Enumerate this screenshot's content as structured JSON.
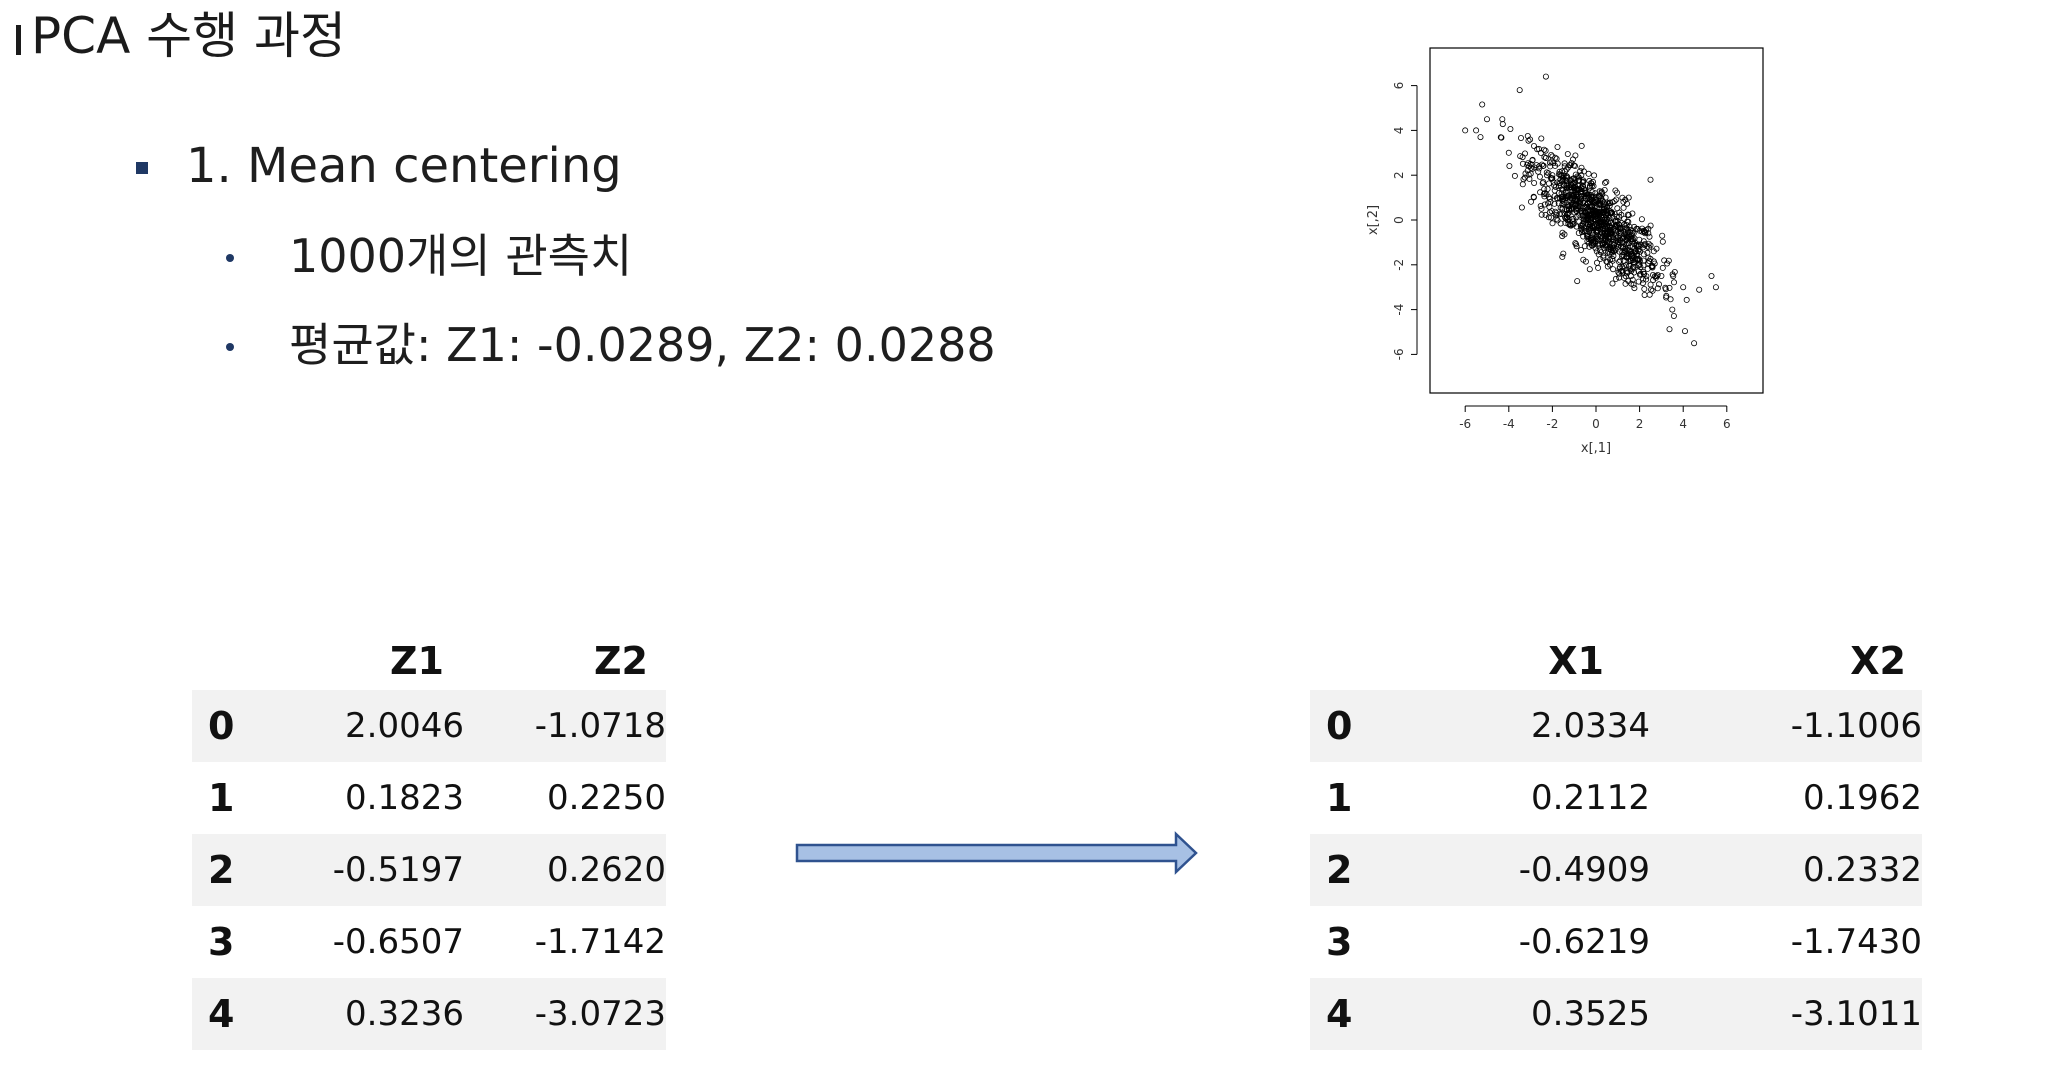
{
  "title": "PCA 수행 과정",
  "bullets": {
    "level1": "1. Mean centering",
    "level2": [
      "1000개의 관측치",
      "평균값: Z1:  -0.0289,  Z2:  0.0288"
    ]
  },
  "plot": {
    "xlabel": "x[,1]",
    "ylabel": "x[,2]",
    "xticks": [
      "-6",
      "-4",
      "-2",
      "0",
      "2",
      "4",
      "6"
    ],
    "yticks": [
      "6",
      "4",
      "2",
      "0",
      "-2",
      "-4",
      "-6"
    ]
  },
  "chart_data": {
    "type": "scatter",
    "xlabel": "x[,1]",
    "ylabel": "x[,2]",
    "xlim": [
      -7,
      8
    ],
    "ylim": [
      -8,
      8
    ],
    "n_points": 1000,
    "grid": false,
    "sample_points": [
      [
        -5.0,
        4.5
      ],
      [
        -5.5,
        4.0
      ],
      [
        -4.3,
        4.5
      ],
      [
        -3.5,
        5.8
      ],
      [
        -2.3,
        6.4
      ],
      [
        -5.3,
        3.7
      ],
      [
        -6.0,
        4.0
      ],
      [
        -4.0,
        3.0
      ],
      [
        -3.0,
        2.5
      ],
      [
        -2.0,
        2.0
      ],
      [
        -1.0,
        1.0
      ],
      [
        0.0,
        0.0
      ],
      [
        1.0,
        -1.0
      ],
      [
        2.0,
        -2.0
      ],
      [
        3.0,
        -2.5
      ],
      [
        4.0,
        -3.0
      ],
      [
        5.3,
        -2.5
      ],
      [
        4.5,
        -5.5
      ],
      [
        5.5,
        -3.0
      ],
      [
        3.5,
        -4.0
      ],
      [
        -2.5,
        0.5
      ],
      [
        1.5,
        1.0
      ],
      [
        2.5,
        1.8
      ],
      [
        -1.5,
        -1.5
      ]
    ]
  },
  "left_table": {
    "columns": [
      "Z1",
      "Z2"
    ],
    "rows": [
      {
        "idx": "0",
        "v1": "2.0046",
        "v2": "-1.0718"
      },
      {
        "idx": "1",
        "v1": "0.1823",
        "v2": "0.2250"
      },
      {
        "idx": "2",
        "v1": "-0.5197",
        "v2": "0.2620"
      },
      {
        "idx": "3",
        "v1": "-0.6507",
        "v2": "-1.7142"
      },
      {
        "idx": "4",
        "v1": "0.3236",
        "v2": "-3.0723"
      }
    ]
  },
  "right_table": {
    "columns": [
      "X1",
      "X2"
    ],
    "rows": [
      {
        "idx": "0",
        "v1": "2.0334",
        "v2": "-1.1006"
      },
      {
        "idx": "1",
        "v1": "0.2112",
        "v2": "0.1962"
      },
      {
        "idx": "2",
        "v1": "-0.4909",
        "v2": "0.2332"
      },
      {
        "idx": "3",
        "v1": "-0.6219",
        "v2": "-1.7430"
      },
      {
        "idx": "4",
        "v1": "0.3525",
        "v2": "-3.1011"
      }
    ]
  },
  "colors": {
    "bullet": "#1f3864",
    "arrow_fill": "#a7c0e4",
    "arrow_stroke": "#2f528f",
    "row_shade": "#f2f2f2"
  }
}
